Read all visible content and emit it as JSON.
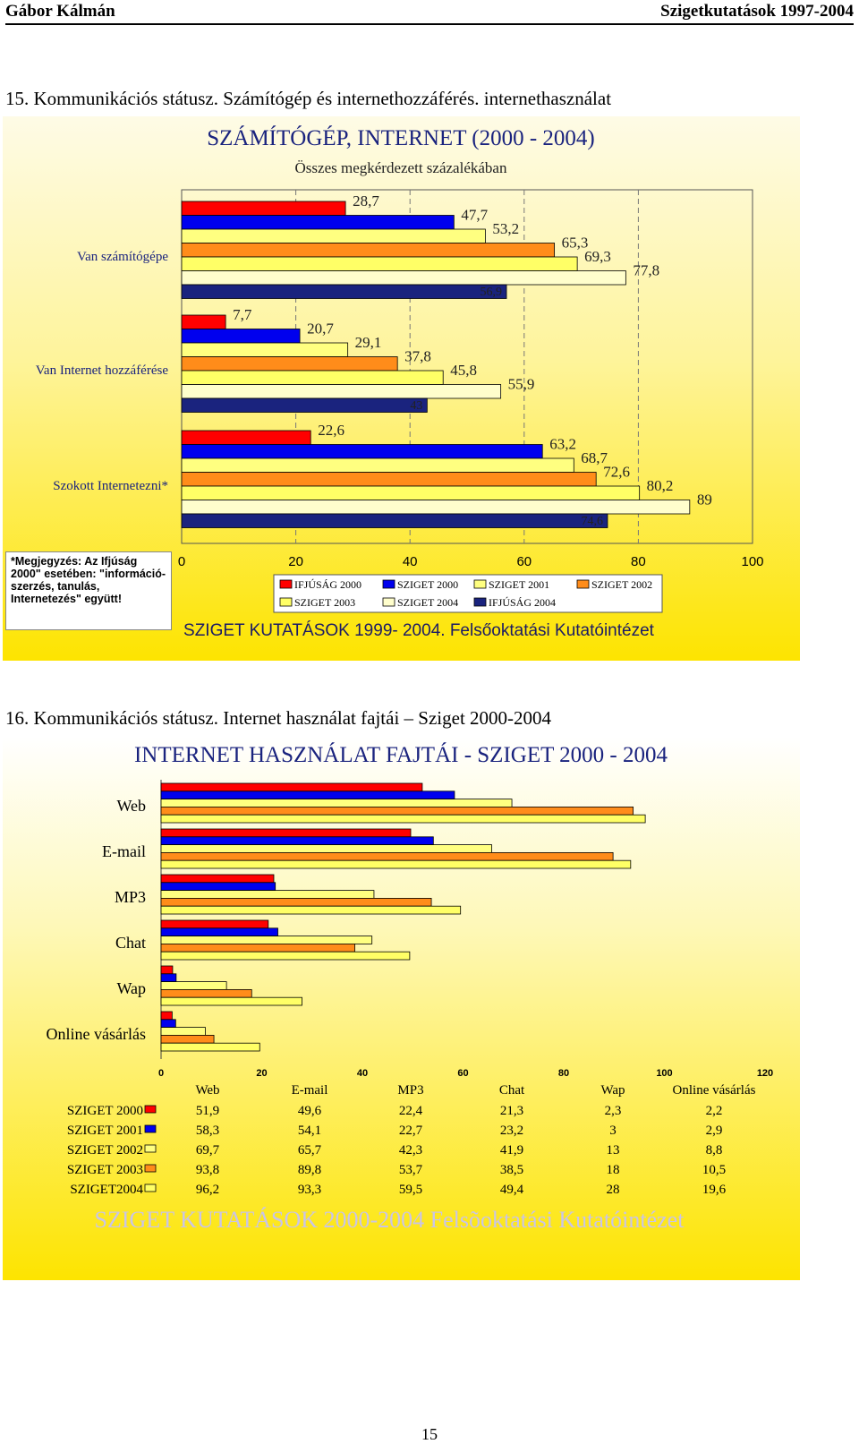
{
  "header": {
    "author": "Gábor Kálmán",
    "title": "Szigetkutatások 1997-2004"
  },
  "section15": {
    "heading": "15. Kommunikációs státusz. Számítógép és internethozzáférés. internethasználat"
  },
  "section16": {
    "heading": "16. Kommunikációs státusz. Internet használat fajtái – Sziget 2000-2004"
  },
  "page_number": "15",
  "colors": {
    "IFJUSAG2000": "#ff0000",
    "SZIGET2000": "#0000ee",
    "SZIGET2001": "#ffff80",
    "SZIGET2002": "#ff8c1a",
    "SZIGET2003": "#ffff66",
    "SZIGET2004": "#fffecc",
    "IFJUSAG2004": "#1a237e"
  },
  "chart_data": [
    {
      "type": "bar",
      "orientation": "horizontal",
      "title": "SZÁMÍTÓGÉP, INTERNET (2000 - 2004)",
      "subtitle": "Összes megkérdezett százalékában",
      "footer": "SZIGET KUTATÁSOK 1999- 2004. Felsőoktatási Kutatóintézet",
      "note": "*Megjegyzés: Az Ifjúság 2000\" esetében: \"információ-szerzés, tanulás, Internetezés\" együtt!",
      "categories": [
        "Van számítógépe",
        "Van Internet hozzáférése",
        "Szokott Internetezni*"
      ],
      "xlim": [
        0,
        100
      ],
      "xticks": [
        "0",
        "20",
        "40",
        "60",
        "80",
        "100"
      ],
      "series": [
        {
          "name": "IFJÚSÁG 2000",
          "values": [
            28.7,
            7.7,
            22.6
          ],
          "labels": [
            "28,7",
            "7,7",
            "22,6"
          ],
          "color": "#ff0000"
        },
        {
          "name": "SZIGET 2000",
          "values": [
            47.7,
            20.7,
            63.2
          ],
          "labels": [
            "47,7",
            "20,7",
            "63,2"
          ],
          "color": "#0000ee"
        },
        {
          "name": "SZIGET 2001",
          "values": [
            53.2,
            29.1,
            68.7
          ],
          "labels": [
            "53,2",
            "29,1",
            "68,7"
          ],
          "color": "#ffff80"
        },
        {
          "name": "SZIGET 2002",
          "values": [
            65.3,
            37.8,
            72.6
          ],
          "labels": [
            "65,3",
            "37,8",
            "72,6"
          ],
          "color": "#ff8c1a"
        },
        {
          "name": "SZIGET 2003",
          "values": [
            69.3,
            45.8,
            80.2
          ],
          "labels": [
            "69,3",
            "45,8",
            "80,2"
          ],
          "color": "#ffff66"
        },
        {
          "name": "SZIGET 2004",
          "values": [
            77.8,
            55.9,
            89
          ],
          "labels": [
            "77,8",
            "55,9",
            "89"
          ],
          "color": "#fffecc"
        },
        {
          "name": "IFJÚSÁG 2004",
          "values": [
            56.9,
            43,
            74.6
          ],
          "labels": [
            "56,9",
            "43",
            "74,6"
          ],
          "color": "#1a237e"
        }
      ],
      "legend": [
        [
          "IFJÚSÁG 2000",
          "SZIGET 2000",
          "SZIGET 2001",
          "SZIGET 2002"
        ],
        [
          "SZIGET 2003",
          "SZIGET 2004",
          "IFJÚSÁG 2004"
        ]
      ],
      "grid": "vertical dashed"
    },
    {
      "type": "bar",
      "orientation": "horizontal",
      "title": "INTERNET HASZNÁLAT FAJTÁI - SZIGET 2000 - 2004",
      "footer": "SZIGET KUTATÁSOK 2000-2004 Felsõoktatási Kutatóintézet",
      "categories": [
        "Web",
        "E-mail",
        "MP3",
        "Chat",
        "Wap",
        "Online vásárlás"
      ],
      "xlim": [
        0,
        120
      ],
      "xticks": [
        "0",
        "20",
        "40",
        "60",
        "80",
        "100",
        "120"
      ],
      "series": [
        {
          "name": "SZIGET 2000",
          "values": [
            51.9,
            49.6,
            22.4,
            21.3,
            2.3,
            2.2
          ],
          "labels": [
            "51,9",
            "49,6",
            "22,4",
            "21,3",
            "2,3",
            "2,2"
          ],
          "color": "#ff0000"
        },
        {
          "name": "SZIGET 2001",
          "values": [
            58.3,
            54.1,
            22.7,
            23.2,
            3,
            2.9
          ],
          "labels": [
            "58,3",
            "54,1",
            "22,7",
            "23,2",
            "3",
            "2,9"
          ],
          "color": "#0000ee"
        },
        {
          "name": "SZIGET 2002",
          "values": [
            69.7,
            65.7,
            42.3,
            41.9,
            13,
            8.8
          ],
          "labels": [
            "69,7",
            "65,7",
            "42,3",
            "41,9",
            "13",
            "8,8"
          ],
          "color": "#ffff80"
        },
        {
          "name": "SZIGET 2003",
          "values": [
            93.8,
            89.8,
            53.7,
            38.5,
            18,
            10.5
          ],
          "labels": [
            "93,8",
            "89,8",
            "53,7",
            "38,5",
            "18",
            "10,5"
          ],
          "color": "#ff8c1a"
        },
        {
          "name": "SZIGET2004",
          "values": [
            96.2,
            93.3,
            59.5,
            49.4,
            28,
            19.6
          ],
          "labels": [
            "96,2",
            "93,3",
            "59,5",
            "49,4",
            "28",
            "19,6"
          ],
          "color": "#ffff66"
        }
      ],
      "data_table": true,
      "grid": "none"
    }
  ]
}
